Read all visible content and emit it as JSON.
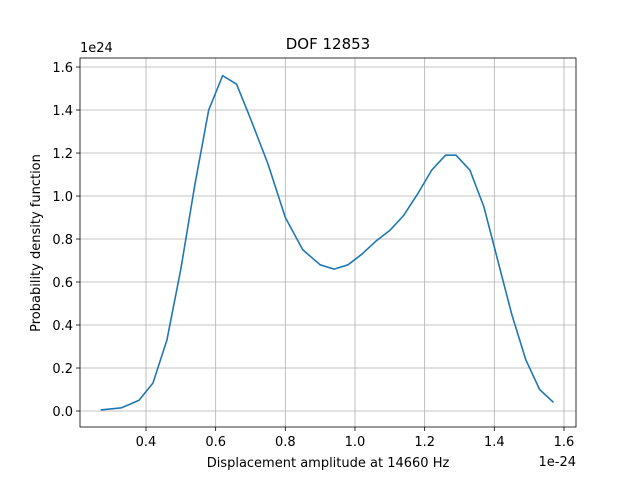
{
  "chart_data": {
    "type": "line",
    "title": "DOF 12853",
    "x_label": "Displacement amplitude at 14660 Hz",
    "y_label": "Probability density function",
    "x_offset_label": "1e-24",
    "y_offset_label": "1e24",
    "x": [
      0.27,
      0.33,
      0.38,
      0.42,
      0.46,
      0.5,
      0.54,
      0.58,
      0.62,
      0.66,
      0.7,
      0.75,
      0.8,
      0.85,
      0.9,
      0.94,
      0.98,
      1.02,
      1.06,
      1.1,
      1.14,
      1.18,
      1.22,
      1.26,
      1.29,
      1.33,
      1.37,
      1.41,
      1.45,
      1.49,
      1.53,
      1.57
    ],
    "series": [
      {
        "color": "#1f77b4",
        "values": [
          0.005,
          0.015,
          0.05,
          0.13,
          0.33,
          0.66,
          1.05,
          1.4,
          1.56,
          1.52,
          1.36,
          1.15,
          0.9,
          0.75,
          0.68,
          0.66,
          0.68,
          0.73,
          0.79,
          0.84,
          0.91,
          1.01,
          1.12,
          1.19,
          1.19,
          1.12,
          0.95,
          0.7,
          0.45,
          0.24,
          0.1,
          0.04
        ]
      }
    ],
    "xlim": [
      0.2105,
      1.6345
    ],
    "ylim": [
      -0.0744,
      1.642
    ],
    "xticks": [
      0.4,
      0.6,
      0.8,
      {
        "value": 1,
        "label": "1.0"
      },
      1.2,
      1.4,
      1.6
    ],
    "yticks": [
      {
        "value": 0,
        "label": "0.0"
      },
      0.2,
      0.4,
      0.6,
      0.8,
      {
        "value": 1,
        "label": "1.0"
      },
      1.2,
      1.4,
      1.6
    ],
    "grid": true
  }
}
